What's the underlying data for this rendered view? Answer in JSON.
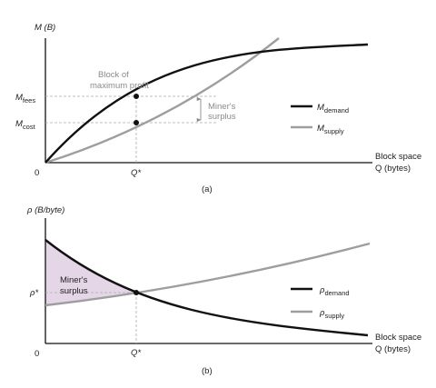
{
  "colors": {
    "demand": "#111111",
    "supply": "#9e9e9e",
    "surplus_fill": "#e4d6e6",
    "guide": "#aaaaaa"
  },
  "panel_a": {
    "y_axis_label": "M (B)",
    "x_axis_label_1": "Block space",
    "x_axis_label_2": "Q (bytes)",
    "origin": "0",
    "q_star_label": "Q*",
    "m_fees_label": "M",
    "m_fees_sub": "fees",
    "m_cost_label": "M",
    "m_cost_sub": "cost",
    "annotation_block_line1": "Block of",
    "annotation_block_line2": "maximum profit",
    "annotation_surplus_line1": "Miner's",
    "annotation_surplus_line2": "surplus",
    "legend_demand": "M",
    "legend_demand_sub": "demand",
    "legend_supply": "M",
    "legend_supply_sub": "supply",
    "caption": "(a)"
  },
  "panel_b": {
    "y_axis_label": "ρ  (B/byte)",
    "x_axis_label_1": "Block space",
    "x_axis_label_2": "Q (bytes)",
    "origin": "0",
    "q_star_label": "Q*",
    "rho_star_label": "ρ*",
    "surplus_line1": "Miner's",
    "surplus_line2": "surplus",
    "legend_demand": "ρ",
    "legend_demand_sub": "demand",
    "legend_supply": "ρ",
    "legend_supply_sub": "supply",
    "caption": "(b)"
  },
  "chart_data": [
    {
      "type": "line",
      "panel": "a",
      "xlabel": "Block space Q (bytes)",
      "ylabel": "M (B)",
      "ticks": {
        "x": [
          "0",
          "Q*"
        ],
        "y": [
          "M_fees",
          "M_cost"
        ]
      },
      "series": [
        {
          "name": "M_demand",
          "shape": "concave increasing"
        },
        {
          "name": "M_supply",
          "shape": "convex increasing"
        }
      ],
      "annotations": [
        "Block of maximum profit",
        "Miner's surplus"
      ]
    },
    {
      "type": "line",
      "panel": "b",
      "xlabel": "Block space Q (bytes)",
      "ylabel": "ρ (B/byte)",
      "ticks": {
        "x": [
          "0",
          "Q*"
        ],
        "y": [
          "ρ*"
        ]
      },
      "series": [
        {
          "name": "ρ_demand",
          "shape": "decreasing"
        },
        {
          "name": "ρ_supply",
          "shape": "increasing"
        }
      ],
      "annotations": [
        "Miner's surplus"
      ]
    }
  ]
}
